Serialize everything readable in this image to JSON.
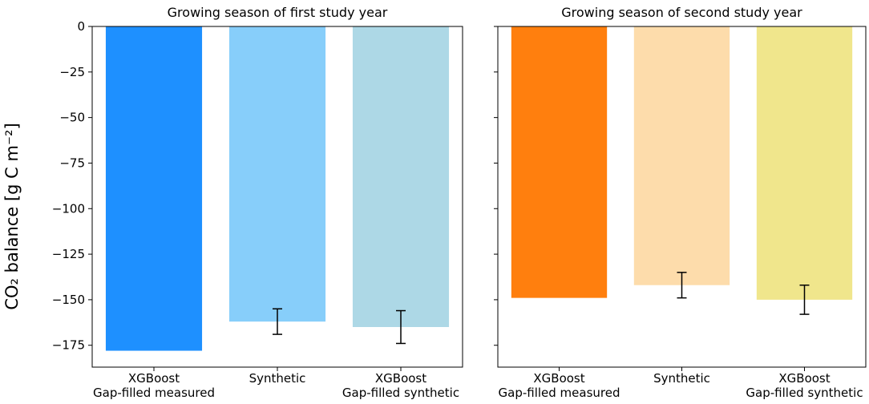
{
  "chart_data": [
    {
      "type": "bar",
      "title": "Growing season of first study year",
      "ylabel": "CO₂ balance [g C m⁻²]",
      "categories": [
        "XGBoost\nGap-filled measured",
        "Synthetic",
        "XGBoost\nGap-filled synthetic"
      ],
      "values": [
        -178,
        -162,
        -165
      ],
      "errors": [
        null,
        7,
        9
      ],
      "colors": [
        "#1e90ff",
        "#87cefa",
        "#add8e6"
      ],
      "ylim": [
        -187,
        0
      ],
      "yticks": [
        {
          "value": -175,
          "label": "−175"
        },
        {
          "value": -150,
          "label": "−150"
        },
        {
          "value": -125,
          "label": "−125"
        },
        {
          "value": -100,
          "label": "−100"
        },
        {
          "value": -75,
          "label": "−75"
        },
        {
          "value": -50,
          "label": "−50"
        },
        {
          "value": -25,
          "label": "−25"
        },
        0
      ],
      "ytick_labels": true
    },
    {
      "type": "bar",
      "title": "Growing season of second study year",
      "categories": [
        "XGBoost\nGap-filled measured",
        "Synthetic",
        "XGBoost\nGap-filled synthetic"
      ],
      "values": [
        -149,
        -142,
        -150
      ],
      "errors": [
        null,
        7,
        8
      ],
      "colors": [
        "#ff7f0e",
        "#fddcab",
        "#f0e68c"
      ],
      "ylim": [
        -187,
        0
      ],
      "yticks": [
        -175,
        -150,
        -125,
        -100,
        -75,
        -50,
        -25,
        0
      ],
      "ytick_labels": false
    }
  ]
}
